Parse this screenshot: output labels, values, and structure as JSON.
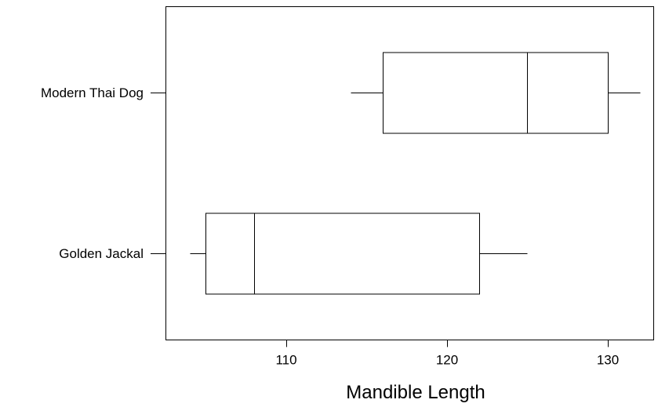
{
  "chart_data": {
    "type": "box",
    "orientation": "horizontal",
    "xlabel": "Mandible Length",
    "xlim": [
      103,
      133
    ],
    "xticks": [
      110,
      120,
      130
    ],
    "grid": false,
    "series": [
      {
        "name": "Modern Thai Dog",
        "min": 114,
        "q1": 116,
        "median": 125,
        "q3": 130,
        "max": 132
      },
      {
        "name": "Golden Jackal",
        "min": 104,
        "q1": 105,
        "median": 108,
        "q3": 122,
        "max": 125
      }
    ]
  }
}
